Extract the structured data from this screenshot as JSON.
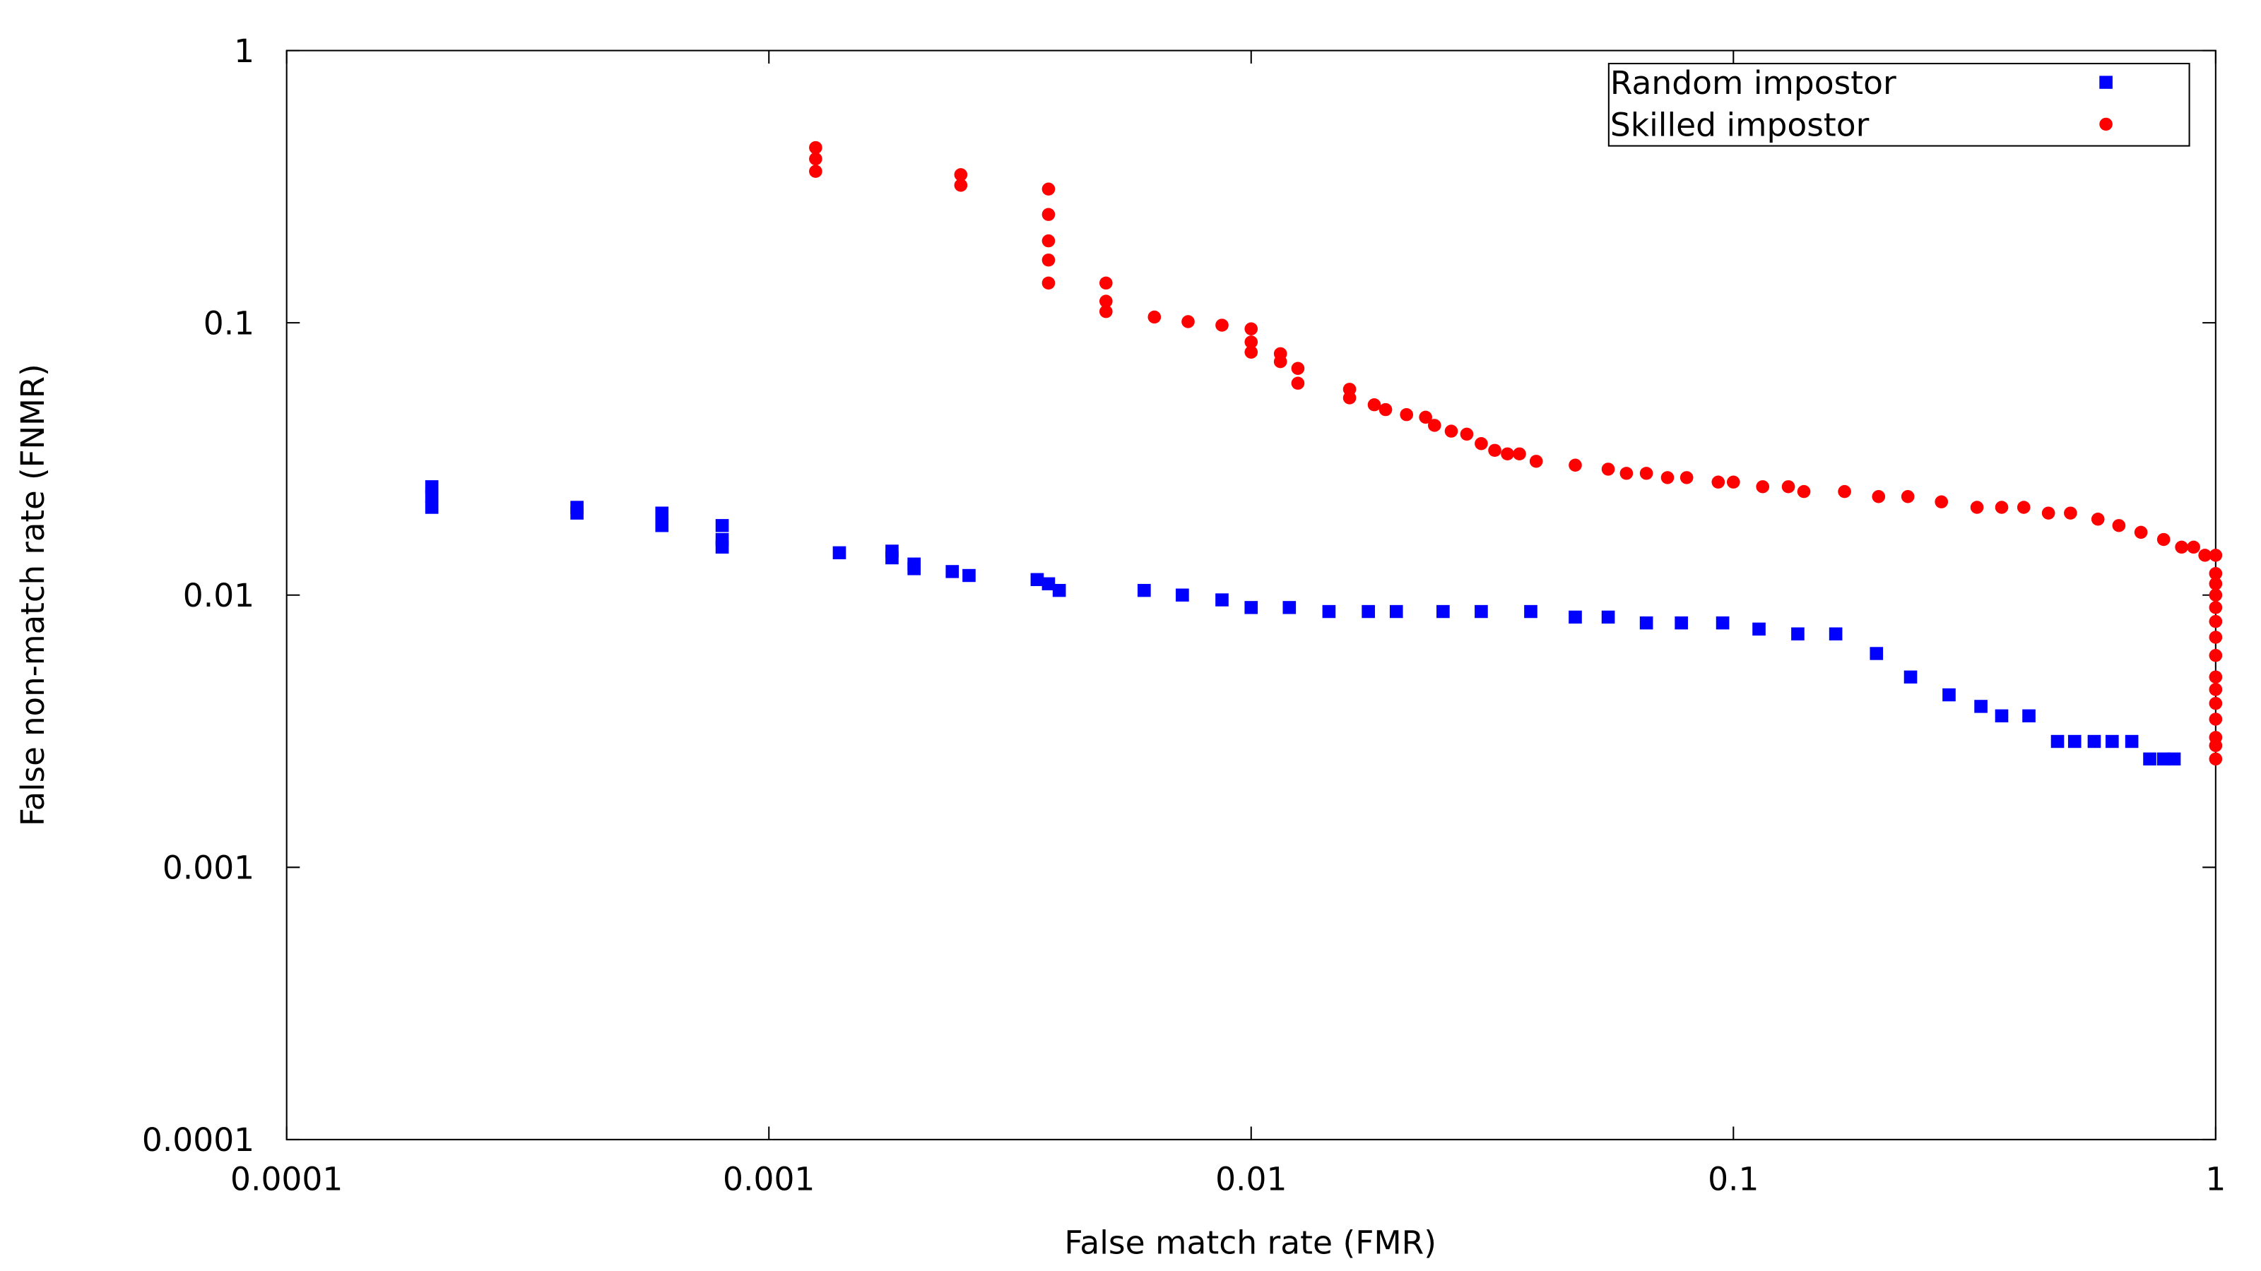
{
  "chart_data": {
    "type": "scatter",
    "xlabel": "False match rate (FMR)",
    "ylabel": "False non-match rate (FNMR)",
    "xscale": "log",
    "yscale": "log",
    "xlim": [
      0.0001,
      1
    ],
    "ylim": [
      0.0001,
      1
    ],
    "xticks": [
      0.0001,
      0.001,
      0.01,
      0.1,
      1
    ],
    "yticks": [
      0.0001,
      0.001,
      0.01,
      0.1,
      1
    ],
    "legend": "upper right",
    "series": [
      {
        "name": "Random impostor",
        "color": "#0000ff",
        "marker": "square",
        "x": [
          0.0002,
          0.0002,
          0.0002,
          0.0004,
          0.0004,
          0.0006,
          0.0006,
          0.0008,
          0.0008,
          0.0008,
          0.0014,
          0.0018,
          0.0018,
          0.002,
          0.002,
          0.0024,
          0.0026,
          0.0036,
          0.0038,
          0.004,
          0.006,
          0.0072,
          0.0087,
          0.01,
          0.012,
          0.0145,
          0.0175,
          0.02,
          0.025,
          0.03,
          0.038,
          0.047,
          0.055,
          0.066,
          0.078,
          0.095,
          0.113,
          0.136,
          0.163,
          0.198,
          0.233,
          0.28,
          0.326,
          0.36,
          0.41,
          0.47,
          0.51,
          0.56,
          0.61,
          0.67,
          0.73,
          0.78,
          0.82
        ],
        "values": [
          0.025,
          0.023,
          0.021,
          0.021,
          0.02,
          0.02,
          0.018,
          0.018,
          0.016,
          0.015,
          0.0143,
          0.0145,
          0.0137,
          0.013,
          0.0125,
          0.0122,
          0.0118,
          0.0114,
          0.011,
          0.0104,
          0.0104,
          0.01,
          0.0096,
          0.009,
          0.009,
          0.0087,
          0.0087,
          0.0087,
          0.0087,
          0.0087,
          0.0087,
          0.0083,
          0.0083,
          0.0079,
          0.0079,
          0.0079,
          0.0075,
          0.0072,
          0.0072,
          0.0061,
          0.005,
          0.0043,
          0.0039,
          0.0036,
          0.0036,
          0.0029,
          0.0029,
          0.0029,
          0.0029,
          0.0029,
          0.0025,
          0.0025,
          0.0025
        ]
      },
      {
        "name": "Skilled impostor",
        "color": "#ff0000",
        "marker": "circle",
        "x": [
          0.00125,
          0.00125,
          0.00125,
          0.0025,
          0.0025,
          0.0038,
          0.0038,
          0.0038,
          0.0038,
          0.0038,
          0.005,
          0.005,
          0.005,
          0.0063,
          0.0074,
          0.0087,
          0.01,
          0.01,
          0.01,
          0.0115,
          0.0115,
          0.0125,
          0.0125,
          0.016,
          0.016,
          0.018,
          0.019,
          0.021,
          0.023,
          0.024,
          0.026,
          0.028,
          0.03,
          0.032,
          0.034,
          0.036,
          0.039,
          0.047,
          0.055,
          0.06,
          0.066,
          0.073,
          0.08,
          0.093,
          0.1,
          0.115,
          0.13,
          0.14,
          0.17,
          0.2,
          0.23,
          0.27,
          0.32,
          0.36,
          0.4,
          0.45,
          0.5,
          0.57,
          0.63,
          0.7,
          0.78,
          0.85,
          0.9,
          0.95,
          1,
          1,
          1,
          1,
          1,
          1,
          1,
          1,
          1,
          1,
          1,
          1,
          1,
          1,
          1
        ],
        "values": [
          0.44,
          0.4,
          0.36,
          0.35,
          0.32,
          0.31,
          0.25,
          0.2,
          0.17,
          0.14,
          0.14,
          0.12,
          0.11,
          0.105,
          0.101,
          0.098,
          0.095,
          0.085,
          0.078,
          0.077,
          0.072,
          0.068,
          0.06,
          0.057,
          0.053,
          0.05,
          0.048,
          0.046,
          0.045,
          0.042,
          0.04,
          0.039,
          0.036,
          0.034,
          0.033,
          0.033,
          0.031,
          0.03,
          0.029,
          0.028,
          0.028,
          0.027,
          0.027,
          0.026,
          0.026,
          0.025,
          0.025,
          0.024,
          0.024,
          0.023,
          0.023,
          0.022,
          0.021,
          0.021,
          0.021,
          0.02,
          0.02,
          0.019,
          0.018,
          0.017,
          0.016,
          0.015,
          0.015,
          0.014,
          0.014,
          0.012,
          0.011,
          0.01,
          0.009,
          0.008,
          0.007,
          0.006,
          0.005,
          0.0045,
          0.004,
          0.0035,
          0.003,
          0.0028,
          0.0025
        ]
      }
    ]
  }
}
